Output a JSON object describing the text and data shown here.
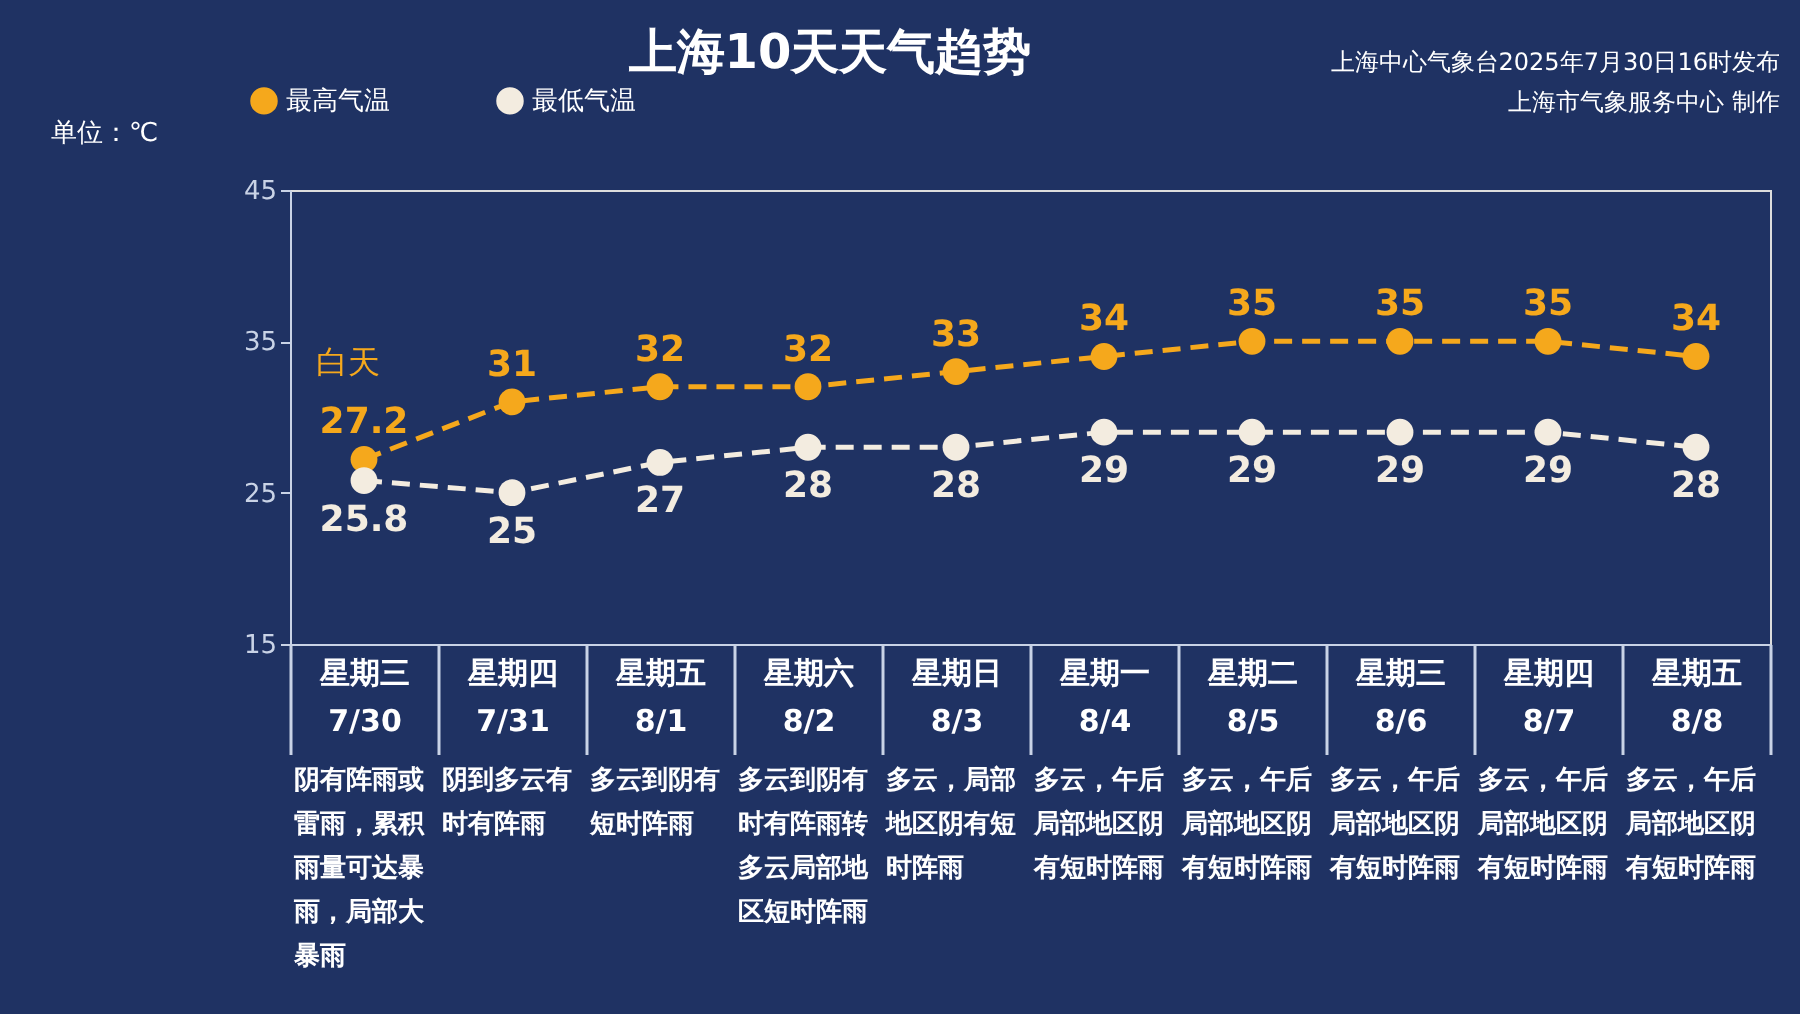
{
  "chart_data": {
    "type": "line",
    "title": "上海10天天气趋势",
    "ylabel": "单位：℃",
    "categories": [
      "星期三 7/30",
      "星期四 7/31",
      "星期五 8/1",
      "星期六 8/2",
      "星期日 8/3",
      "星期一 8/4",
      "星期二 8/5",
      "星期三 8/6",
      "星期四 8/7",
      "星期五 8/8"
    ],
    "series": [
      {
        "name": "最高气温",
        "color": "#f5a81c",
        "values": [
          27.2,
          31,
          32,
          32,
          33,
          34,
          35,
          35,
          35,
          34
        ]
      },
      {
        "name": "最低气温",
        "color": "#f3ece0",
        "values": [
          25.8,
          25,
          27,
          28,
          28,
          29,
          29,
          29,
          29,
          28
        ]
      }
    ],
    "ylim": [
      15,
      45
    ],
    "yticks": [
      15,
      25,
      35,
      45
    ],
    "grid": false,
    "legend": "top left",
    "marker": "circle",
    "line_style": "dashed",
    "data_labels": true,
    "annotations": [
      "上海中心气象台2025年7月30日16时发布",
      "上海市气象服务中心 制作",
      "白天",
      "阴有阵雨或雷雨，累积雨量可达暴雨，局部大暴雨",
      "阴到多云有时有阵雨",
      "多云到阴有短时阵雨",
      "多云到阴有时有阵雨转多云局部地区短时阵雨",
      "多云，局部地区阴有短时阵雨",
      "多云，午后局部地区阴有短时阵雨",
      "多云，午后局部地区阴有短时阵雨",
      "多云，午后局部地区阴有短时阵雨",
      "多云，午后局部地区阴有短时阵雨",
      "多云，午后局部地区阴有短时阵雨"
    ]
  }
}
